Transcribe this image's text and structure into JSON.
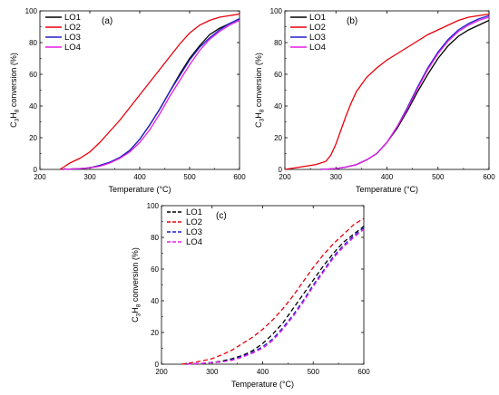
{
  "chart_data": [
    {
      "type": "line",
      "panel_label": "(a)",
      "xlabel": "Temperature (°C)",
      "ylabel": "C3H8 conversion (%)",
      "ylabel_parts": [
        "C",
        "3",
        "H",
        "8",
        " conversion (%)"
      ],
      "xlim": [
        200,
        600
      ],
      "ylim": [
        0,
        100
      ],
      "xticks": [
        "200",
        "300",
        "400",
        "500",
        "600"
      ],
      "yticks": [
        "0",
        "20",
        "40",
        "60",
        "80",
        "100"
      ],
      "legend_position": "top-left",
      "line_style": "solid",
      "series": [
        {
          "name": "LO1",
          "color": "#000000",
          "x": [
            245,
            260,
            280,
            300,
            320,
            340,
            360,
            380,
            400,
            420,
            440,
            460,
            480,
            500,
            520,
            540,
            560,
            580,
            600
          ],
          "y": [
            0,
            0.2,
            0.5,
            1,
            2.5,
            4.5,
            7.5,
            12,
            19,
            28,
            38,
            49,
            60,
            70,
            78,
            85,
            89,
            92,
            95
          ]
        },
        {
          "name": "LO2",
          "color": "#e8000b",
          "x": [
            240,
            250,
            260,
            280,
            300,
            320,
            340,
            360,
            380,
            400,
            420,
            440,
            460,
            480,
            500,
            520,
            540,
            560,
            580,
            600
          ],
          "y": [
            0,
            2,
            4,
            7,
            11,
            17,
            24,
            31,
            39,
            47,
            55,
            63,
            71,
            79,
            86,
            91,
            94,
            96,
            97,
            98
          ]
        },
        {
          "name": "LO3",
          "color": "#1f1fcc",
          "x": [
            245,
            260,
            280,
            300,
            320,
            340,
            360,
            380,
            400,
            420,
            440,
            460,
            480,
            500,
            520,
            540,
            560,
            580,
            600
          ],
          "y": [
            0,
            0.2,
            0.5,
            1,
            2.5,
            4.5,
            7.5,
            12,
            19,
            28,
            38,
            49,
            59,
            69,
            77,
            83,
            88,
            92,
            95
          ]
        },
        {
          "name": "LO4",
          "color": "#e51ee5",
          "x": [
            245,
            260,
            280,
            300,
            320,
            340,
            360,
            380,
            400,
            420,
            440,
            460,
            480,
            500,
            520,
            540,
            560,
            580,
            600
          ],
          "y": [
            0,
            0.2,
            0.5,
            1,
            2,
            4,
            7,
            11,
            17,
            25,
            35,
            46,
            56,
            66,
            75,
            82,
            87,
            91,
            94
          ]
        }
      ]
    },
    {
      "type": "line",
      "panel_label": "(b)",
      "xlabel": "Temperature (°C)",
      "ylabel": "C3H8 conversion (%)",
      "ylabel_parts": [
        "C",
        "3",
        "H",
        "8",
        " conversion (%)"
      ],
      "xlim": [
        200,
        600
      ],
      "ylim": [
        0,
        100
      ],
      "xticks": [
        "200",
        "300",
        "400",
        "500",
        "600"
      ],
      "yticks": [
        "0",
        "20",
        "40",
        "60",
        "80",
        "100"
      ],
      "legend_position": "top-left",
      "line_style": "solid",
      "series": [
        {
          "name": "LO1",
          "color": "#000000",
          "x": [
            270,
            300,
            320,
            340,
            360,
            380,
            400,
            420,
            440,
            460,
            480,
            500,
            520,
            540,
            560,
            580,
            600
          ],
          "y": [
            0,
            0.5,
            1.5,
            3,
            6,
            10,
            17,
            26,
            37,
            49,
            60,
            70,
            78,
            84,
            88,
            91,
            94
          ]
        },
        {
          "name": "LO2",
          "color": "#e8000b",
          "x": [
            200,
            220,
            240,
            260,
            280,
            290,
            300,
            310,
            320,
            330,
            340,
            360,
            380,
            400,
            420,
            440,
            460,
            480,
            500,
            520,
            540,
            560,
            580,
            600
          ],
          "y": [
            0,
            1,
            2,
            3,
            5,
            9,
            16,
            25,
            34,
            42,
            49,
            58,
            64,
            69,
            73,
            77,
            81,
            85,
            88,
            91,
            94,
            96,
            97,
            98
          ]
        },
        {
          "name": "LO3",
          "color": "#1f1fcc",
          "x": [
            270,
            300,
            320,
            340,
            360,
            380,
            400,
            420,
            440,
            460,
            480,
            500,
            520,
            540,
            560,
            580,
            600
          ],
          "y": [
            0,
            0.5,
            1.5,
            3,
            6,
            10,
            17,
            27,
            39,
            52,
            64,
            74,
            82,
            88,
            92,
            95,
            97
          ]
        },
        {
          "name": "LO4",
          "color": "#e51ee5",
          "x": [
            270,
            300,
            320,
            340,
            360,
            380,
            400,
            420,
            440,
            460,
            480,
            500,
            520,
            540,
            560,
            580,
            600
          ],
          "y": [
            0,
            0.5,
            1.5,
            3,
            6,
            10,
            17,
            27,
            38,
            51,
            63,
            73,
            81,
            87,
            91,
            94,
            96
          ]
        }
      ]
    },
    {
      "type": "line",
      "panel_label": "(c)",
      "xlabel": "Temperature (°C)",
      "ylabel": "C3H8 conversion (%)",
      "ylabel_parts": [
        "C",
        "3",
        "H",
        "8",
        " conversion (%)"
      ],
      "xlim": [
        200,
        600
      ],
      "ylim": [
        0,
        100
      ],
      "xticks": [
        "200",
        "300",
        "400",
        "500",
        "600"
      ],
      "yticks": [
        "0",
        "20",
        "40",
        "60",
        "80",
        "100"
      ],
      "legend_position": "top-left",
      "line_style": "dashed",
      "series": [
        {
          "name": "LO1",
          "color": "#000000",
          "x": [
            250,
            280,
            300,
            320,
            340,
            360,
            380,
            400,
            420,
            440,
            460,
            480,
            500,
            520,
            540,
            560,
            580,
            600
          ],
          "y": [
            0,
            0.5,
            1,
            2,
            3.5,
            5.5,
            8.5,
            13,
            19,
            26,
            35,
            44,
            53,
            62,
            70,
            77,
            82,
            87
          ]
        },
        {
          "name": "LO2",
          "color": "#e8000b",
          "x": [
            240,
            260,
            280,
            300,
            320,
            340,
            360,
            380,
            400,
            420,
            440,
            460,
            480,
            500,
            520,
            540,
            560,
            580,
            600
          ],
          "y": [
            0,
            1,
            2,
            3.5,
            6,
            9,
            13,
            17,
            22,
            28,
            35,
            43,
            52,
            61,
            69,
            76,
            82,
            88,
            92
          ]
        },
        {
          "name": "LO3",
          "color": "#1f1fcc",
          "x": [
            250,
            280,
            300,
            320,
            340,
            360,
            380,
            400,
            420,
            440,
            460,
            480,
            500,
            520,
            540,
            560,
            580,
            600
          ],
          "y": [
            0,
            0.5,
            1,
            1.5,
            3,
            5,
            7.5,
            11,
            16,
            23,
            31,
            40,
            50,
            59,
            68,
            75,
            81,
            86
          ]
        },
        {
          "name": "LO4",
          "color": "#e51ee5",
          "x": [
            250,
            280,
            300,
            320,
            340,
            360,
            380,
            400,
            420,
            440,
            460,
            480,
            500,
            520,
            540,
            560,
            580,
            600
          ],
          "y": [
            0,
            0.5,
            1,
            1.5,
            2.5,
            4.5,
            7,
            10,
            15,
            22,
            30,
            39,
            49,
            58,
            67,
            74,
            80,
            85
          ]
        }
      ]
    }
  ]
}
